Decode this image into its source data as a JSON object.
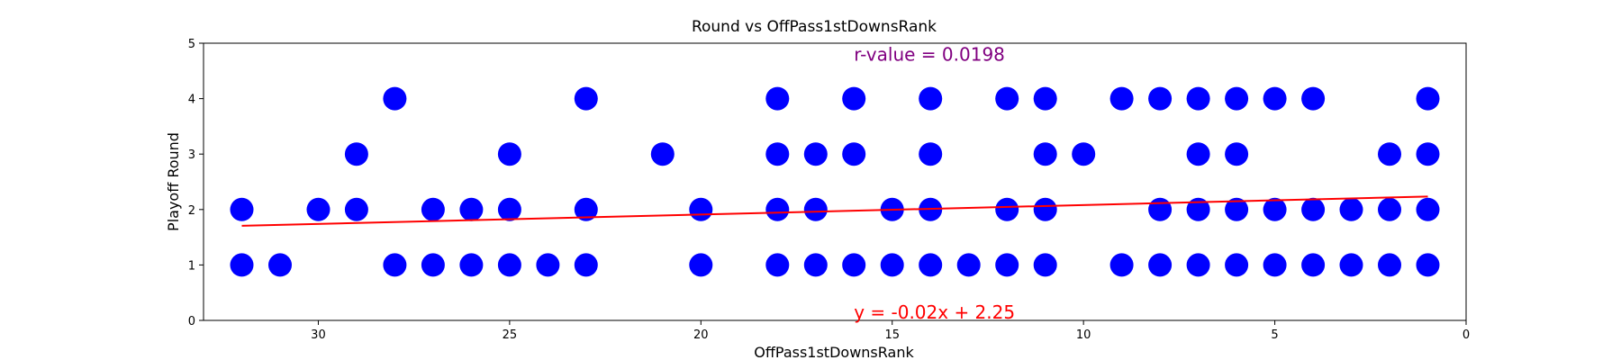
{
  "chart_data": {
    "type": "scatter",
    "title": "Round vs OffPass1stDownsRank",
    "xlabel": "OffPass1stDownsRank",
    "ylabel": "Playoff Round",
    "xlim": [
      33,
      0
    ],
    "ylim": [
      0,
      5
    ],
    "x_inverted": true,
    "x_ticks": [
      30,
      25,
      20,
      15,
      10,
      5,
      0
    ],
    "y_ticks": [
      0,
      1,
      2,
      3,
      4,
      5
    ],
    "grid": false,
    "points": [
      [
        32,
        1
      ],
      [
        32,
        2
      ],
      [
        31,
        1
      ],
      [
        30,
        2
      ],
      [
        29,
        2
      ],
      [
        29,
        3
      ],
      [
        28,
        1
      ],
      [
        28,
        4
      ],
      [
        27,
        1
      ],
      [
        27,
        2
      ],
      [
        26,
        1
      ],
      [
        26,
        2
      ],
      [
        25,
        1
      ],
      [
        25,
        2
      ],
      [
        25,
        3
      ],
      [
        24,
        1
      ],
      [
        23,
        1
      ],
      [
        23,
        2
      ],
      [
        23,
        4
      ],
      [
        21,
        3
      ],
      [
        20,
        1
      ],
      [
        20,
        2
      ],
      [
        18,
        1
      ],
      [
        18,
        2
      ],
      [
        18,
        3
      ],
      [
        18,
        4
      ],
      [
        17,
        1
      ],
      [
        17,
        2
      ],
      [
        17,
        3
      ],
      [
        16,
        1
      ],
      [
        16,
        3
      ],
      [
        16,
        4
      ],
      [
        15,
        1
      ],
      [
        15,
        2
      ],
      [
        14,
        1
      ],
      [
        14,
        2
      ],
      [
        14,
        3
      ],
      [
        14,
        4
      ],
      [
        13,
        1
      ],
      [
        12,
        1
      ],
      [
        12,
        2
      ],
      [
        12,
        4
      ],
      [
        11,
        1
      ],
      [
        11,
        2
      ],
      [
        11,
        3
      ],
      [
        11,
        4
      ],
      [
        10,
        3
      ],
      [
        9,
        1
      ],
      [
        9,
        4
      ],
      [
        8,
        1
      ],
      [
        8,
        2
      ],
      [
        8,
        4
      ],
      [
        7,
        1
      ],
      [
        7,
        2
      ],
      [
        7,
        3
      ],
      [
        7,
        4
      ],
      [
        6,
        1
      ],
      [
        6,
        2
      ],
      [
        6,
        3
      ],
      [
        6,
        4
      ],
      [
        5,
        1
      ],
      [
        5,
        2
      ],
      [
        5,
        4
      ],
      [
        4,
        1
      ],
      [
        4,
        2
      ],
      [
        4,
        4
      ],
      [
        3,
        1
      ],
      [
        3,
        2
      ],
      [
        2,
        1
      ],
      [
        2,
        2
      ],
      [
        2,
        3
      ],
      [
        1,
        1
      ],
      [
        1,
        2
      ],
      [
        1,
        3
      ],
      [
        1,
        4
      ]
    ],
    "regression": {
      "slope": -0.017,
      "intercept": 2.25,
      "x_range": [
        32,
        1
      ]
    },
    "annotations": {
      "r_value": {
        "text": "r-value = 0.0198",
        "x": 16,
        "y": 4.8
      },
      "equation": {
        "text": "y = -0.02x + 2.25",
        "x": 16,
        "y": 0.15
      }
    },
    "colors": {
      "points": "#0000ff",
      "regression": "#ff0000",
      "r_value": "#800080",
      "equation": "#ff0000"
    }
  }
}
